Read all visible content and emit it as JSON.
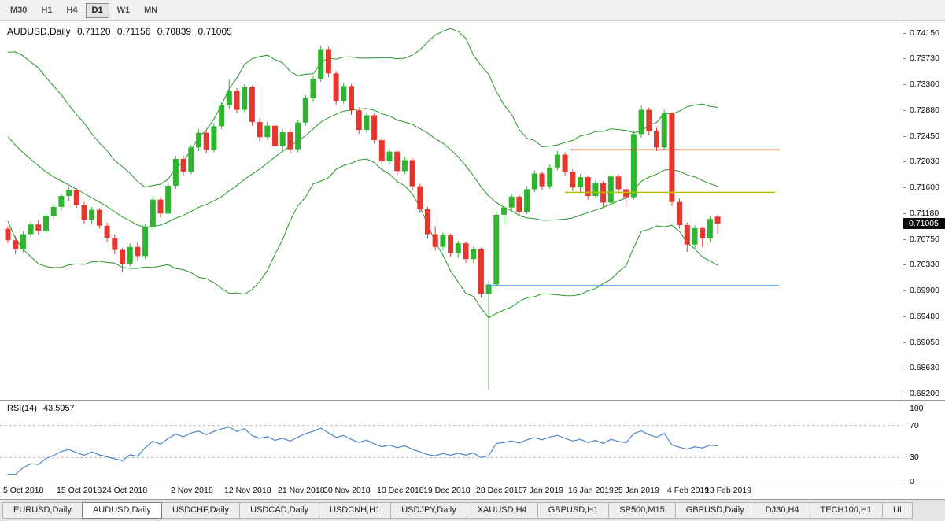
{
  "toolbar": {
    "timeframes": [
      {
        "label": "M30",
        "active": false
      },
      {
        "label": "H1",
        "active": false
      },
      {
        "label": "H4",
        "active": false
      },
      {
        "label": "D1",
        "active": true
      },
      {
        "label": "W1",
        "active": false
      },
      {
        "label": "MN",
        "active": false
      }
    ]
  },
  "chart_data": {
    "type": "candlestick",
    "symbol": "AUDUSD,Daily",
    "ohlc": [
      "0.71120",
      "0.71156",
      "0.70839",
      "0.71005"
    ],
    "ylim": [
      0.681,
      0.7434
    ],
    "y_tick_labels": [
      "0.74150",
      "0.73730",
      "0.73300",
      "0.72880",
      "0.72450",
      "0.72030",
      "0.71600",
      "0.71180",
      "0.70750",
      "0.70330",
      "0.69900",
      "0.69480",
      "0.69050",
      "0.68630",
      "0.68200"
    ],
    "x_labels": [
      {
        "label": "5 Oct 2018",
        "i": 0
      },
      {
        "label": "15 Oct 2018",
        "i": 7
      },
      {
        "label": "24 Oct 2018",
        "i": 13
      },
      {
        "label": "2 Nov 2018",
        "i": 22
      },
      {
        "label": "12 Nov 2018",
        "i": 29
      },
      {
        "label": "21 Nov 2018",
        "i": 36
      },
      {
        "label": "30 Nov 2018",
        "i": 42
      },
      {
        "label": "10 Dec 2018",
        "i": 49
      },
      {
        "label": "19 Dec 2018",
        "i": 55
      },
      {
        "label": "28 Dec 2018",
        "i": 62
      },
      {
        "label": "7 Jan 2019",
        "i": 68
      },
      {
        "label": "16 Jan 2019",
        "i": 74
      },
      {
        "label": "25 Jan 2019",
        "i": 80
      },
      {
        "label": "4 Feb 2019",
        "i": 87
      },
      {
        "label": "13 Feb 2019",
        "i": 92
      }
    ],
    "colors": {
      "up": "#2db52d",
      "down": "#e4372e",
      "band": "#269626",
      "rsi": "#4a86c8"
    },
    "hlines": [
      {
        "price": 0.7222,
        "color": "#e0392e",
        "x1": 0.633,
        "x2": 0.864,
        "name": "resistance-hline-red"
      },
      {
        "price": 0.7152,
        "color": "#b6bf00",
        "x1": 0.626,
        "x2": 0.859,
        "name": "support-hline-yellow"
      },
      {
        "price": 0.6998,
        "color": "#2b7cd3",
        "x1": 0.539,
        "x2": 0.863,
        "name": "support-hline-blue"
      }
    ],
    "rsi": {
      "label": "RSI(14)",
      "value": "43.5957",
      "ticks": [
        "100",
        "70",
        "30",
        "0"
      ],
      "levels": [
        70,
        30
      ]
    },
    "pre_closes": [
      0.7352,
      0.734,
      0.7328,
      0.7318,
      0.7305,
      0.7312,
      0.7295,
      0.728,
      0.7288,
      0.727,
      0.7252,
      0.726,
      0.724,
      0.7222,
      0.723,
      0.7205,
      0.7185,
      0.7192,
      0.716,
      0.712
    ],
    "candles": [
      [
        0.7092,
        0.7096,
        0.7068,
        0.7073
      ],
      [
        0.7073,
        0.708,
        0.705,
        0.7058
      ],
      [
        0.7058,
        0.7088,
        0.7052,
        0.7083
      ],
      [
        0.7083,
        0.7104,
        0.7078,
        0.7099
      ],
      [
        0.7099,
        0.7106,
        0.7082,
        0.7089
      ],
      [
        0.7089,
        0.7118,
        0.7085,
        0.7113
      ],
      [
        0.7113,
        0.7133,
        0.7108,
        0.7128
      ],
      [
        0.7128,
        0.715,
        0.7122,
        0.7146
      ],
      [
        0.7146,
        0.7162,
        0.7138,
        0.7156
      ],
      [
        0.7156,
        0.7159,
        0.7126,
        0.7131
      ],
      [
        0.7131,
        0.7136,
        0.71,
        0.7107
      ],
      [
        0.7107,
        0.7128,
        0.71,
        0.7123
      ],
      [
        0.7123,
        0.7126,
        0.7092,
        0.7097
      ],
      [
        0.7097,
        0.7102,
        0.707,
        0.7077
      ],
      [
        0.7077,
        0.7082,
        0.705,
        0.7057
      ],
      [
        0.7057,
        0.706,
        0.7021,
        0.7034
      ],
      [
        0.7034,
        0.7068,
        0.703,
        0.7062
      ],
      [
        0.7062,
        0.707,
        0.704,
        0.7047
      ],
      [
        0.7047,
        0.71,
        0.7042,
        0.7095
      ],
      [
        0.7095,
        0.7146,
        0.709,
        0.714
      ],
      [
        0.714,
        0.7144,
        0.711,
        0.7117
      ],
      [
        0.7117,
        0.7168,
        0.7112,
        0.7163
      ],
      [
        0.7163,
        0.7212,
        0.7158,
        0.7207
      ],
      [
        0.7207,
        0.7212,
        0.718,
        0.7186
      ],
      [
        0.7186,
        0.723,
        0.7182,
        0.7226
      ],
      [
        0.7226,
        0.7256,
        0.722,
        0.725
      ],
      [
        0.725,
        0.7254,
        0.7216,
        0.7222
      ],
      [
        0.7222,
        0.7266,
        0.7218,
        0.7261
      ],
      [
        0.7261,
        0.73,
        0.7256,
        0.7295
      ],
      [
        0.7295,
        0.7338,
        0.729,
        0.7319
      ],
      [
        0.7319,
        0.7324,
        0.7282,
        0.7288
      ],
      [
        0.7288,
        0.733,
        0.7284,
        0.7325
      ],
      [
        0.7325,
        0.7328,
        0.7262,
        0.7268
      ],
      [
        0.7268,
        0.7274,
        0.7236,
        0.7243
      ],
      [
        0.7243,
        0.7268,
        0.7238,
        0.7262
      ],
      [
        0.7262,
        0.7266,
        0.7222,
        0.7228
      ],
      [
        0.7228,
        0.7256,
        0.7222,
        0.7251
      ],
      [
        0.7251,
        0.7256,
        0.7216,
        0.7223
      ],
      [
        0.7223,
        0.7272,
        0.7218,
        0.7267
      ],
      [
        0.7267,
        0.7312,
        0.7262,
        0.7307
      ],
      [
        0.7307,
        0.7344,
        0.7302,
        0.7339
      ],
      [
        0.7339,
        0.7394,
        0.7334,
        0.7388
      ],
      [
        0.7388,
        0.7392,
        0.7342,
        0.7348
      ],
      [
        0.7348,
        0.7352,
        0.7296,
        0.7303
      ],
      [
        0.7303,
        0.7332,
        0.7298,
        0.7327
      ],
      [
        0.7327,
        0.733,
        0.728,
        0.7287
      ],
      [
        0.7287,
        0.7292,
        0.7248,
        0.7255
      ],
      [
        0.7255,
        0.7284,
        0.725,
        0.7279
      ],
      [
        0.7279,
        0.7282,
        0.7232,
        0.7238
      ],
      [
        0.7238,
        0.7242,
        0.7196,
        0.7203
      ],
      [
        0.7203,
        0.7224,
        0.7198,
        0.7219
      ],
      [
        0.7219,
        0.7222,
        0.718,
        0.7187
      ],
      [
        0.7187,
        0.721,
        0.7182,
        0.7205
      ],
      [
        0.7205,
        0.7208,
        0.7156,
        0.7162
      ],
      [
        0.7162,
        0.7166,
        0.7118,
        0.7124
      ],
      [
        0.7124,
        0.7128,
        0.7076,
        0.7083
      ],
      [
        0.7083,
        0.7096,
        0.7056,
        0.7062
      ],
      [
        0.7062,
        0.7086,
        0.7056,
        0.7081
      ],
      [
        0.7081,
        0.7084,
        0.7046,
        0.7052
      ],
      [
        0.7052,
        0.7072,
        0.7044,
        0.7068
      ],
      [
        0.7068,
        0.7071,
        0.7036,
        0.7042
      ],
      [
        0.7042,
        0.7062,
        0.7036,
        0.7058
      ],
      [
        0.7058,
        0.7061,
        0.6978,
        0.6985
      ],
      [
        0.6985,
        0.7006,
        0.6826,
        0.7
      ],
      [
        0.7,
        0.712,
        0.6996,
        0.7115
      ],
      [
        0.7115,
        0.7132,
        0.7098,
        0.7127
      ],
      [
        0.7127,
        0.715,
        0.7122,
        0.7145
      ],
      [
        0.7145,
        0.7148,
        0.7114,
        0.712
      ],
      [
        0.712,
        0.7162,
        0.7116,
        0.7157
      ],
      [
        0.7157,
        0.7188,
        0.7152,
        0.7183
      ],
      [
        0.7183,
        0.7186,
        0.7156,
        0.7162
      ],
      [
        0.7162,
        0.7198,
        0.7158,
        0.7193
      ],
      [
        0.7193,
        0.722,
        0.7188,
        0.7214
      ],
      [
        0.7214,
        0.7218,
        0.718,
        0.7186
      ],
      [
        0.7186,
        0.719,
        0.7154,
        0.716
      ],
      [
        0.716,
        0.7182,
        0.715,
        0.7177
      ],
      [
        0.7177,
        0.718,
        0.714,
        0.7146
      ],
      [
        0.7146,
        0.7172,
        0.7142,
        0.7167
      ],
      [
        0.7167,
        0.717,
        0.7128,
        0.7135
      ],
      [
        0.7135,
        0.7183,
        0.713,
        0.7178
      ],
      [
        0.7178,
        0.7182,
        0.715,
        0.7157
      ],
      [
        0.7157,
        0.7161,
        0.7128,
        0.7144
      ],
      [
        0.7144,
        0.7253,
        0.714,
        0.7248
      ],
      [
        0.7248,
        0.7295,
        0.7242,
        0.7288
      ],
      [
        0.7288,
        0.7292,
        0.7246,
        0.7253
      ],
      [
        0.7253,
        0.7258,
        0.722,
        0.7226
      ],
      [
        0.7226,
        0.7288,
        0.7222,
        0.7282
      ],
      [
        0.7282,
        0.7284,
        0.713,
        0.7136
      ],
      [
        0.7136,
        0.7142,
        0.7092,
        0.7098
      ],
      [
        0.7098,
        0.7102,
        0.7054,
        0.7066
      ],
      [
        0.7066,
        0.7098,
        0.706,
        0.7093
      ],
      [
        0.7093,
        0.7096,
        0.7062,
        0.7076
      ],
      [
        0.7076,
        0.7112,
        0.707,
        0.7108
      ],
      [
        0.7112,
        0.71156,
        0.70839,
        0.71005
      ]
    ]
  },
  "tabs": [
    {
      "label": "EURUSD,Daily",
      "active": false
    },
    {
      "label": "AUDUSD,Daily",
      "active": true
    },
    {
      "label": "USDCHF,Daily",
      "active": false
    },
    {
      "label": "USDCAD,Daily",
      "active": false
    },
    {
      "label": "USDCNH,H1",
      "active": false
    },
    {
      "label": "USDJPY,Daily",
      "active": false
    },
    {
      "label": "XAUUSD,H4",
      "active": false
    },
    {
      "label": "GBPUSD,H1",
      "active": false
    },
    {
      "label": "SP500,M15",
      "active": false
    },
    {
      "label": "GBPUSD,Daily",
      "active": false
    },
    {
      "label": "DJ30,H4",
      "active": false
    },
    {
      "label": "TECH100,H1",
      "active": false
    },
    {
      "label": "UI",
      "active": false
    }
  ]
}
